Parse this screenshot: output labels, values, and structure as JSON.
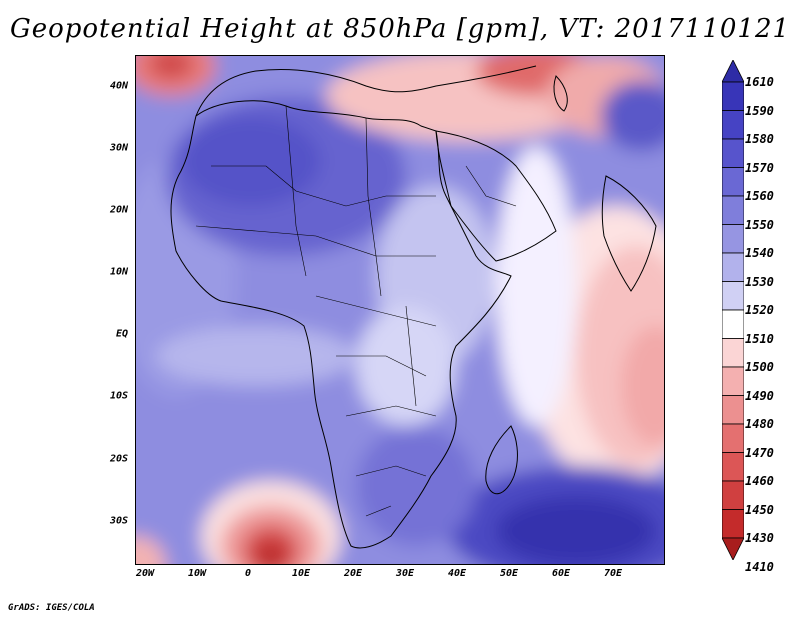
{
  "title": "Geopotential Height at 850hPa [gpm], VT: 2017110121",
  "footer": "GrADS: IGES/COLA",
  "lat_labels": [
    "40N",
    "30N",
    "20N",
    "10N",
    "EQ",
    "10S",
    "20S",
    "30S"
  ],
  "lon_labels": [
    "20W",
    "10W",
    "0",
    "10E",
    "20E",
    "30E",
    "40E",
    "50E",
    "60E",
    "70E"
  ],
  "colorbar": {
    "levels": [
      "1610",
      "1590",
      "1580",
      "1570",
      "1560",
      "1550",
      "1540",
      "1530",
      "1520",
      "1510",
      "1500",
      "1490",
      "1480",
      "1470",
      "1460",
      "1450",
      "1430",
      "1410"
    ],
    "colors": [
      "#2e2ca6",
      "#3835b8",
      "#4643c4",
      "#5754cc",
      "#6a68d4",
      "#7f7edb",
      "#9695e2",
      "#b2b2ec",
      "#d0d0f4",
      "#ffffff",
      "#fbd5d5",
      "#f4b0b0",
      "#ec9090",
      "#e47070",
      "#dc5656",
      "#d04040",
      "#c42b2b",
      "#a81d1d"
    ]
  }
}
